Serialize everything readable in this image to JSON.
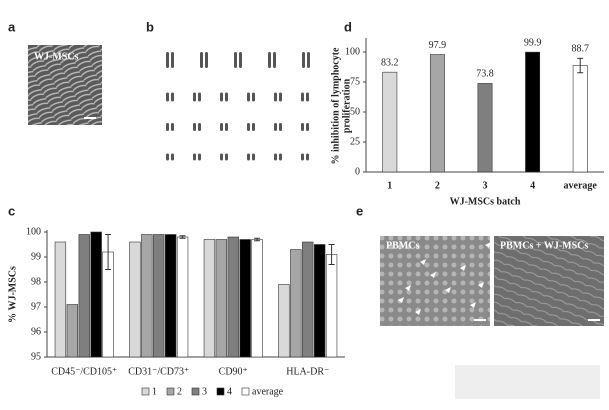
{
  "images": {
    "a": {
      "label": "a",
      "caption": "WJ-MSCs"
    },
    "b": {
      "label": "b"
    },
    "e": {
      "label": "e",
      "captions": [
        "PBMCs",
        "PBMCs + WJ-MSCs"
      ]
    }
  },
  "chart_data": [
    {
      "type": "bar",
      "label": "d",
      "y_label": [
        "% inhibition of lymphocyte",
        "proliferation"
      ],
      "x_label": "WJ-MSCs batch",
      "categories": [
        "1",
        "2",
        "3",
        "4",
        "average"
      ],
      "values": [
        83.2,
        97.9,
        73.8,
        99.9,
        88.7
      ],
      "colors": [
        "#d9d9d9",
        "#a6a6a6",
        "#7f7f7f",
        "#000000",
        "#ffffff"
      ],
      "errors": [
        null,
        null,
        null,
        null,
        6
      ],
      "ylim": [
        0,
        110
      ],
      "yticks": [
        0,
        25,
        50,
        75,
        100
      ]
    },
    {
      "type": "bar",
      "label": "c",
      "y_label": "% WJ-MSCs",
      "categories": [
        "CD45⁻/CD105⁺",
        "CD31⁻/CD73⁺",
        "CD90⁺",
        "HLA-DR⁻"
      ],
      "series": [
        {
          "name": "1",
          "color": "#d9d9d9",
          "values": [
            99.6,
            99.6,
            99.7,
            97.9
          ]
        },
        {
          "name": "2",
          "color": "#a6a6a6",
          "values": [
            97.1,
            99.9,
            99.7,
            99.3
          ]
        },
        {
          "name": "3",
          "color": "#7f7f7f",
          "values": [
            99.9,
            99.9,
            99.8,
            99.6
          ]
        },
        {
          "name": "4",
          "color": "#000000",
          "values": [
            100.0,
            99.9,
            99.7,
            99.5
          ]
        },
        {
          "name": "average",
          "color": "#ffffff",
          "values": [
            99.2,
            99.8,
            99.7,
            99.1
          ],
          "errors": [
            0.7,
            0.05,
            0.05,
            0.4
          ]
        }
      ],
      "ylim": [
        95,
        100
      ],
      "yticks": [
        95,
        96,
        97,
        98,
        99,
        100
      ],
      "legend": "bottom"
    }
  ]
}
